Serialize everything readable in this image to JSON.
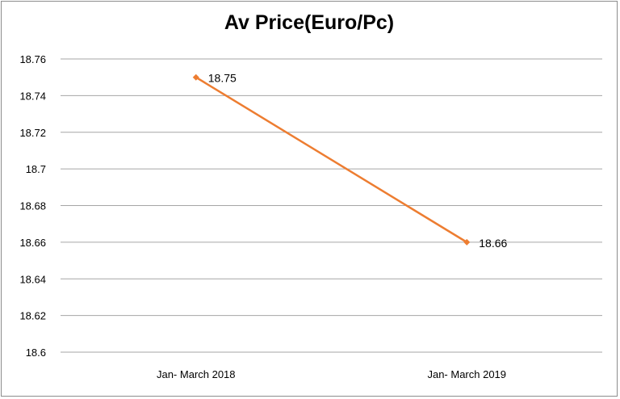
{
  "chart_data": {
    "type": "line",
    "title": "Av Price(Euro/Pc)",
    "categories": [
      "Jan- March 2018",
      "Jan- March 2019"
    ],
    "series": [
      {
        "values": [
          18.75,
          18.66
        ],
        "color": "#ED7D31"
      }
    ],
    "ylim": [
      18.6,
      18.76
    ],
    "yticks": [
      "18.6",
      "18.62",
      "18.64",
      "18.66",
      "18.68",
      "18.7",
      "18.72",
      "18.74",
      "18.76"
    ],
    "data_labels": [
      "18.75",
      "18.66"
    ],
    "grid": true,
    "legend": "none"
  }
}
